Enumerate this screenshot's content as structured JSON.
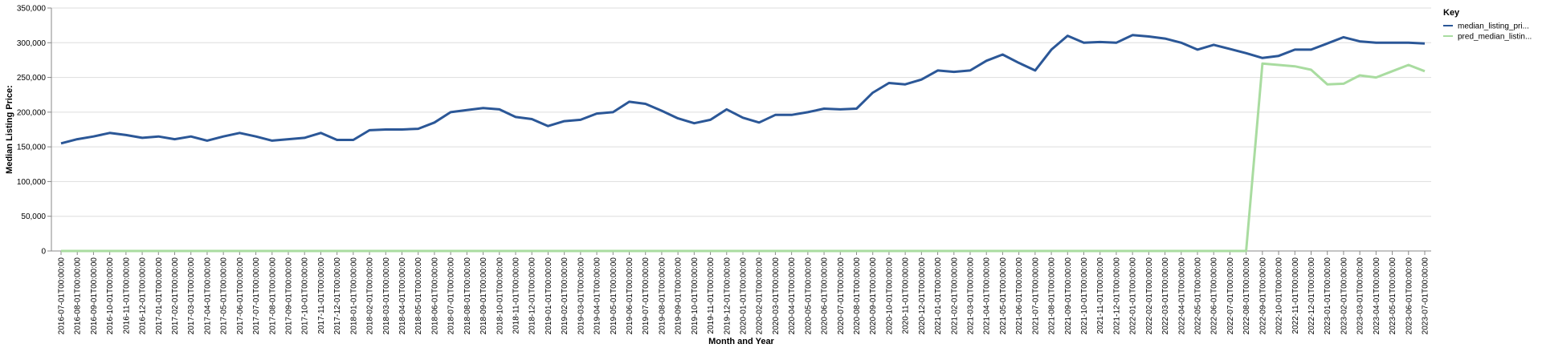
{
  "chart_data": {
    "type": "line",
    "xlabel": "Month and Year",
    "ylabel": "Median Listing Price:",
    "ylim": [
      0,
      350000
    ],
    "yticks": [
      "0",
      "50,000",
      "100,000",
      "150,000",
      "200,000",
      "250,000",
      "300,000",
      "350,000"
    ],
    "grid": true,
    "legend": {
      "title": "Key",
      "placement": "right"
    },
    "colors": {
      "median": "#2b5797",
      "pred": "#a9dca0"
    },
    "x": [
      "2016-07-01T00:00:00",
      "2016-08-01T00:00:00",
      "2016-09-01T00:00:00",
      "2016-10-01T00:00:00",
      "2016-11-01T00:00:00",
      "2016-12-01T00:00:00",
      "2017-01-01T00:00:00",
      "2017-02-01T00:00:00",
      "2017-03-01T00:00:00",
      "2017-04-01T00:00:00",
      "2017-05-01T00:00:00",
      "2017-06-01T00:00:00",
      "2017-07-01T00:00:00",
      "2017-08-01T00:00:00",
      "2017-09-01T00:00:00",
      "2017-10-01T00:00:00",
      "2017-11-01T00:00:00",
      "2017-12-01T00:00:00",
      "2018-01-01T00:00:00",
      "2018-02-01T00:00:00",
      "2018-03-01T00:00:00",
      "2018-04-01T00:00:00",
      "2018-05-01T00:00:00",
      "2018-06-01T00:00:00",
      "2018-07-01T00:00:00",
      "2018-08-01T00:00:00",
      "2018-09-01T00:00:00",
      "2018-10-01T00:00:00",
      "2018-11-01T00:00:00",
      "2018-12-01T00:00:00",
      "2019-01-01T00:00:00",
      "2019-02-01T00:00:00",
      "2019-03-01T00:00:00",
      "2019-04-01T00:00:00",
      "2019-05-01T00:00:00",
      "2019-06-01T00:00:00",
      "2019-07-01T00:00:00",
      "2019-08-01T00:00:00",
      "2019-09-01T00:00:00",
      "2019-10-01T00:00:00",
      "2019-11-01T00:00:00",
      "2019-12-01T00:00:00",
      "2020-01-01T00:00:00",
      "2020-02-01T00:00:00",
      "2020-03-01T00:00:00",
      "2020-04-01T00:00:00",
      "2020-05-01T00:00:00",
      "2020-06-01T00:00:00",
      "2020-07-01T00:00:00",
      "2020-08-01T00:00:00",
      "2020-09-01T00:00:00",
      "2020-10-01T00:00:00",
      "2020-11-01T00:00:00",
      "2020-12-01T00:00:00",
      "2021-01-01T00:00:00",
      "2021-02-01T00:00:00",
      "2021-03-01T00:00:00",
      "2021-04-01T00:00:00",
      "2021-05-01T00:00:00",
      "2021-06-01T00:00:00",
      "2021-07-01T00:00:00",
      "2021-08-01T00:00:00",
      "2021-09-01T00:00:00",
      "2021-10-01T00:00:00",
      "2021-11-01T00:00:00",
      "2021-12-01T00:00:00",
      "2022-01-01T00:00:00",
      "2022-02-01T00:00:00",
      "2022-03-01T00:00:00",
      "2022-04-01T00:00:00",
      "2022-05-01T00:00:00",
      "2022-06-01T00:00:00",
      "2022-07-01T00:00:00",
      "2022-08-01T00:00:00",
      "2022-09-01T00:00:00",
      "2022-10-01T00:00:00",
      "2022-11-01T00:00:00",
      "2022-12-01T00:00:00",
      "2023-01-01T00:00:00",
      "2023-02-01T00:00:00",
      "2023-03-01T00:00:00",
      "2023-04-01T00:00:00",
      "2023-05-01T00:00:00",
      "2023-06-01T00:00:00",
      "2023-07-01T00:00:00"
    ],
    "series": [
      {
        "name": "median_listing_pri...",
        "values": [
          155000,
          161000,
          165000,
          170000,
          167000,
          163000,
          165000,
          161000,
          165000,
          159000,
          165000,
          170000,
          165000,
          159000,
          161000,
          163000,
          170000,
          160000,
          160000,
          174000,
          175000,
          175000,
          176000,
          185000,
          200000,
          203000,
          206000,
          204000,
          193000,
          190000,
          180000,
          187000,
          189000,
          198000,
          200000,
          215000,
          212000,
          202000,
          191000,
          184000,
          189000,
          204000,
          192000,
          185000,
          196000,
          196000,
          200000,
          205000,
          204000,
          205000,
          228000,
          242000,
          240000,
          247000,
          260000,
          258000,
          260000,
          274000,
          283000,
          271000,
          260000,
          290000,
          310000,
          300000,
          301000,
          300000,
          311000,
          309000,
          306000,
          300000,
          290000,
          297000,
          291000,
          285000,
          278000,
          281000,
          290000,
          290000,
          299000,
          308000,
          302000,
          300000,
          300000,
          300000,
          299000
        ]
      },
      {
        "name": "pred_median_listin...",
        "values": [
          0,
          0,
          0,
          0,
          0,
          0,
          0,
          0,
          0,
          0,
          0,
          0,
          0,
          0,
          0,
          0,
          0,
          0,
          0,
          0,
          0,
          0,
          0,
          0,
          0,
          0,
          0,
          0,
          0,
          0,
          0,
          0,
          0,
          0,
          0,
          0,
          0,
          0,
          0,
          0,
          0,
          0,
          0,
          0,
          0,
          0,
          0,
          0,
          0,
          0,
          0,
          0,
          0,
          0,
          0,
          0,
          0,
          0,
          0,
          0,
          0,
          0,
          0,
          0,
          0,
          0,
          0,
          0,
          0,
          0,
          0,
          0,
          0,
          0,
          270000,
          268000,
          266000,
          261000,
          240000,
          241000,
          253000,
          250000,
          259000,
          268000,
          259000
        ]
      }
    ]
  }
}
